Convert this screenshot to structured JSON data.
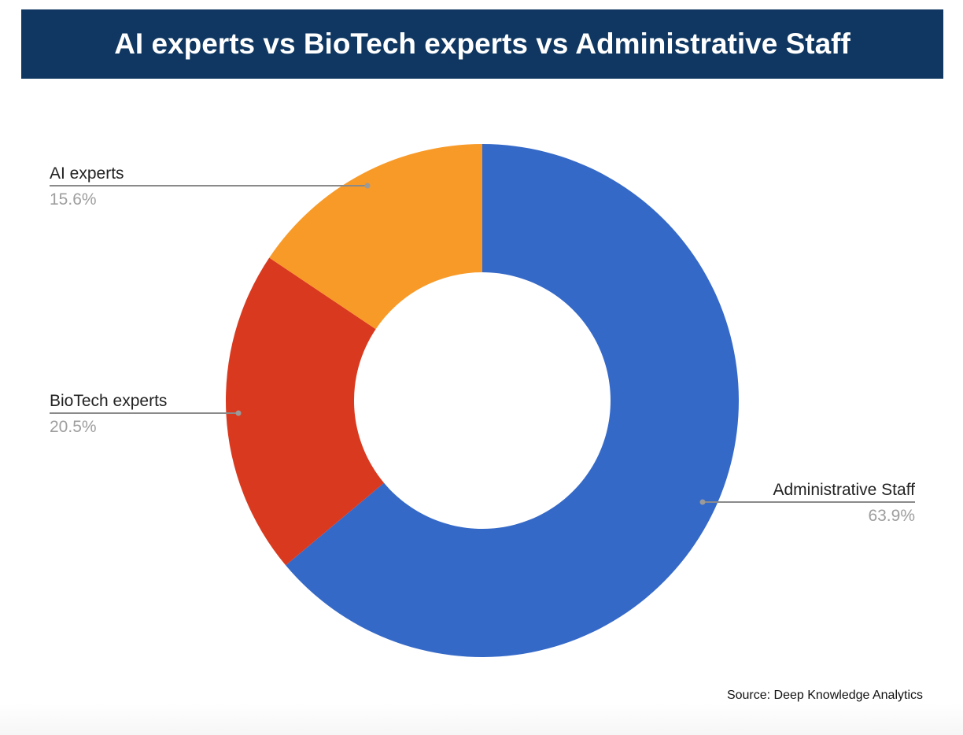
{
  "chart_data": {
    "type": "pie",
    "variant": "donut",
    "title": "AI experts vs BioTech experts vs Administrative Staff",
    "slices": [
      {
        "label": "Administrative Staff",
        "value": 63.9,
        "display": "63.9%",
        "color": "#3569c8"
      },
      {
        "label": "BioTech experts",
        "value": 20.5,
        "display": "20.5%",
        "color": "#d93a1f"
      },
      {
        "label": "AI experts",
        "value": 15.6,
        "display": "15.6%",
        "color": "#f89a28"
      }
    ],
    "source": "Source: Deep Knowledge Analytics"
  }
}
